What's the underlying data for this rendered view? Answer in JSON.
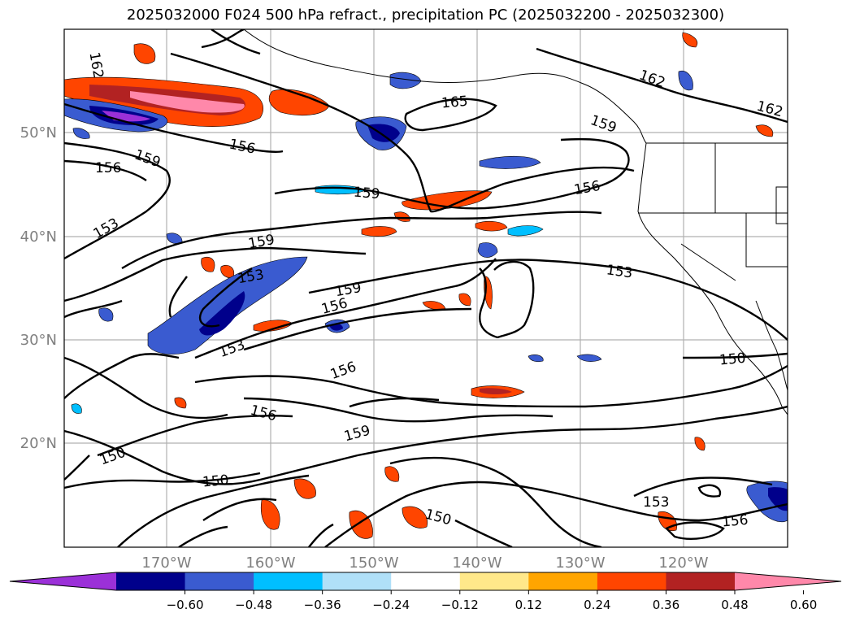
{
  "title": "2025032000 F024 500 hPa refract., precipitation PC (2025032200 - 2025032300)",
  "map": {
    "lon_labels": [
      "170°W",
      "160°W",
      "150°W",
      "140°W",
      "130°W",
      "120°W"
    ],
    "lat_labels": [
      "50°N",
      "40°N",
      "30°N",
      "20°N"
    ],
    "contour_labels": [
      "162",
      "165",
      "162",
      "162",
      "159",
      "156",
      "156",
      "159",
      "159",
      "156",
      "153",
      "159",
      "153",
      "159",
      "156",
      "153",
      "156",
      "153",
      "150",
      "156",
      "159",
      "150",
      "150",
      "153",
      "156",
      "150"
    ]
  },
  "colorbar": {
    "colors": [
      "#9b30d8",
      "#00008b",
      "#3a5bd0",
      "#00bfff",
      "#b0e0f8",
      "#ffffff",
      "#ffe88a",
      "#ffa500",
      "#ff4500",
      "#b22222",
      "#ff88aa"
    ],
    "under_color": "#9b30d8",
    "over_color": "#ff88aa",
    "tick_labels": [
      "−0.60",
      "−0.48",
      "−0.36",
      "−0.24",
      "−0.12",
      "0.12",
      "0.24",
      "0.36",
      "0.48",
      "0.60"
    ]
  }
}
